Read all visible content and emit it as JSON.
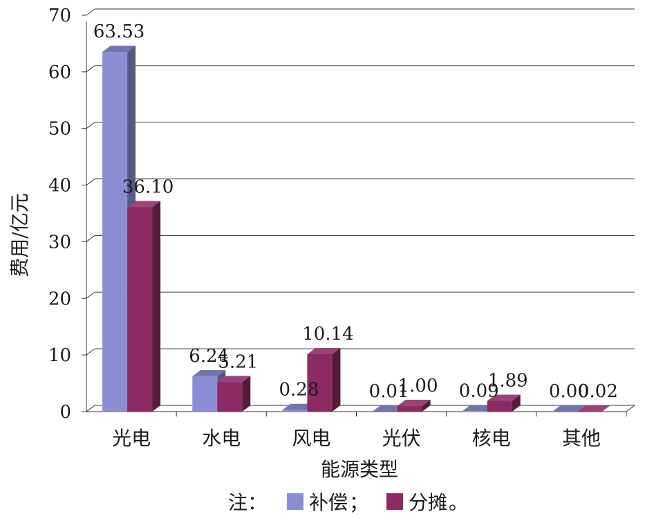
{
  "chart_data": {
    "type": "bar",
    "title": "",
    "xlabel": "能源类型",
    "ylabel": "费用/亿元",
    "ylim": [
      0,
      70
    ],
    "yticks": [
      0,
      10,
      20,
      30,
      40,
      50,
      60,
      70
    ],
    "grid": true,
    "legend_position": "bottom",
    "categories": [
      "光电",
      "水电",
      "风电",
      "光伏",
      "核电",
      "其他"
    ],
    "series": [
      {
        "name": "补偿",
        "color": "#8c8ed4",
        "values": [
          63.53,
          6.24,
          0.28,
          0.01,
          0.09,
          0.0
        ],
        "labels": [
          "63.53",
          "6.24",
          "0.28",
          "0.01",
          "0.09",
          "0.00"
        ]
      },
      {
        "name": "分摊",
        "color": "#8b2a63",
        "values": [
          36.1,
          5.21,
          10.14,
          1.0,
          1.89,
          0.02
        ],
        "labels": [
          "36.10",
          "5.21",
          "10.14",
          "1.00",
          "1.89",
          "0.02"
        ]
      }
    ],
    "legend_prefix": "注：",
    "legend_separator": "；",
    "legend_suffix": "。"
  }
}
